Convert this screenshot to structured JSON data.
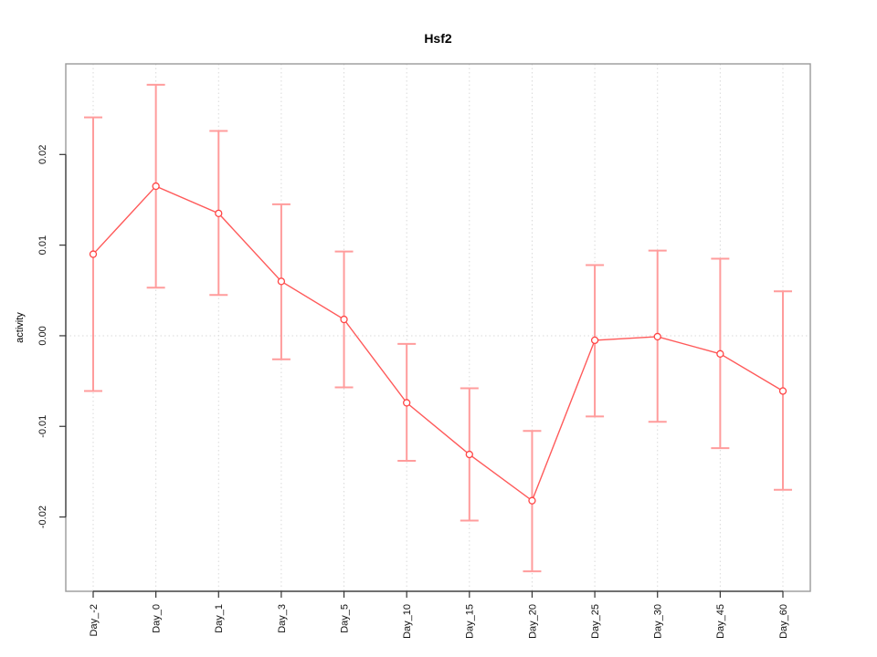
{
  "chart_data": {
    "type": "line",
    "title": "Hsf2",
    "xlabel": "",
    "ylabel": "activity",
    "categories": [
      "Day_-2",
      "Day_0",
      "Day_1",
      "Day_3",
      "Day_5",
      "Day_10",
      "Day_15",
      "Day_20",
      "Day_25",
      "Day_30",
      "Day_45",
      "Day_60"
    ],
    "series": [
      {
        "name": "activity",
        "marker": "open-circle",
        "values": [
          0.009,
          0.0165,
          0.0135,
          0.006,
          0.0018,
          -0.0074,
          -0.0131,
          -0.0182,
          -0.0005,
          -0.0001,
          -0.002,
          -0.0061
        ],
        "upper": [
          0.0241,
          0.0277,
          0.0226,
          0.0145,
          0.0093,
          -0.0009,
          -0.0058,
          -0.0105,
          0.0078,
          0.0094,
          0.0085,
          0.0049
        ],
        "lower": [
          -0.0061,
          0.0053,
          0.0045,
          -0.0026,
          -0.0057,
          -0.0138,
          -0.0204,
          -0.026,
          -0.0089,
          -0.0095,
          -0.0124,
          -0.017
        ]
      }
    ],
    "ylim": [
      -0.0282,
      0.03
    ],
    "yticks": [
      -0.02,
      -0.01,
      0.0,
      0.01,
      0.02
    ],
    "ytick_labels": [
      "-0.02",
      "-0.01",
      "0.00",
      "0.01",
      "0.02"
    ],
    "xtick_label_rotation_deg": 90,
    "ytick_label_rotation_deg": 90,
    "legend_position": "none",
    "grid": {
      "vertical_gridlines_dotted": true,
      "zero_line_dotted": true,
      "horizontal_gridlines": false
    },
    "colors": {
      "series_line": "#ff5a5a",
      "marker_stroke": "#ff4545",
      "error_bar": "#ff9c9c",
      "grid": "#d9d9d9",
      "box_border": "#9a9a9a",
      "axis_line": "#333333",
      "text": "#111111",
      "background": "#ffffff"
    }
  }
}
